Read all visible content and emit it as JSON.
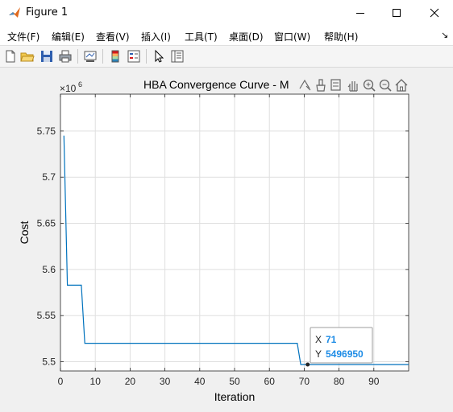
{
  "window": {
    "title": "Figure 1",
    "controls": [
      "minimize",
      "maximize",
      "close"
    ]
  },
  "menubar": {
    "items": [
      {
        "label": "文件(F)"
      },
      {
        "label": "编辑(E)"
      },
      {
        "label": "查看(V)"
      },
      {
        "label": "插入(I)"
      },
      {
        "label": "工具(T)"
      },
      {
        "label": "桌面(D)"
      },
      {
        "label": "窗口(W)"
      },
      {
        "label": "帮助(H)"
      }
    ],
    "overflow_glyph": "↘"
  },
  "toolbar": {
    "buttons": [
      "new-figure-icon",
      "open-file-icon",
      "save-icon",
      "print-icon",
      "link-plot-icon",
      "colorbar-icon",
      "legend-icon",
      "select-pointer-icon",
      "property-inspector-icon"
    ]
  },
  "axes_toolbar": {
    "buttons": [
      "export-icon",
      "brush-icon",
      "datatip-icon",
      "pan-icon",
      "zoom-in-icon",
      "zoom-out-icon",
      "home-icon"
    ]
  },
  "chart_data": {
    "type": "line",
    "title": "HBA Convergence Curve - M",
    "xlabel": "Iteration",
    "ylabel": "Cost",
    "exponent_label": "×10",
    "exponent_power": "6",
    "xlim": [
      0,
      100
    ],
    "ylim": [
      5490000,
      5790000
    ],
    "xticks": [
      0,
      10,
      20,
      30,
      40,
      50,
      60,
      70,
      80,
      90
    ],
    "yticks": [
      5500000,
      5550000,
      5600000,
      5650000,
      5700000,
      5750000
    ],
    "ytick_labels": [
      "5.5",
      "5.55",
      "5.6",
      "5.65",
      "5.7",
      "5.75"
    ],
    "grid": true,
    "line_color": "#0072bd",
    "series": [
      {
        "x": [
          1,
          2,
          6,
          7,
          68,
          69,
          71,
          100
        ],
        "y": [
          5745000,
          5583000,
          5583000,
          5520000,
          5520000,
          5496950,
          5496950,
          5496950
        ]
      }
    ],
    "datatip": {
      "x_label": "X",
      "x_value": "71",
      "y_label": "Y",
      "y_value": "5496950",
      "x": 71,
      "y": 5496950,
      "value_color": "#1e8ce6"
    }
  }
}
